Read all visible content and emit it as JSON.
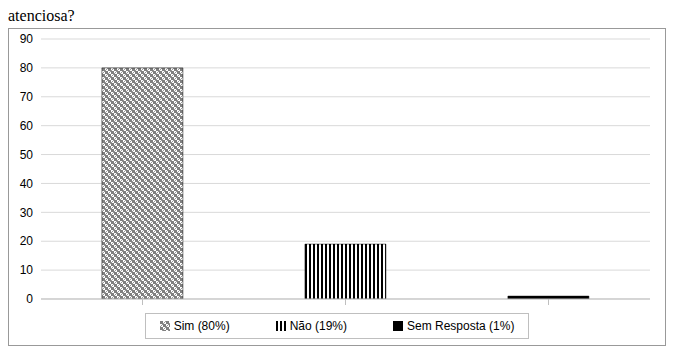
{
  "chart_data": {
    "type": "bar",
    "title": "atenciosa?",
    "categories": [
      "Sim (80%)",
      "Não (19%)",
      "Sem Resposta (1%)"
    ],
    "values": [
      80,
      19,
      1
    ],
    "colors": [
      "#7f7f7f",
      "#000000",
      "#000000"
    ],
    "ylim": [
      0,
      90
    ],
    "yticks": [
      0,
      10,
      20,
      30,
      40,
      50,
      60,
      70,
      80,
      90
    ],
    "grid": true,
    "legend": "bottom",
    "tick_labels": "y"
  }
}
